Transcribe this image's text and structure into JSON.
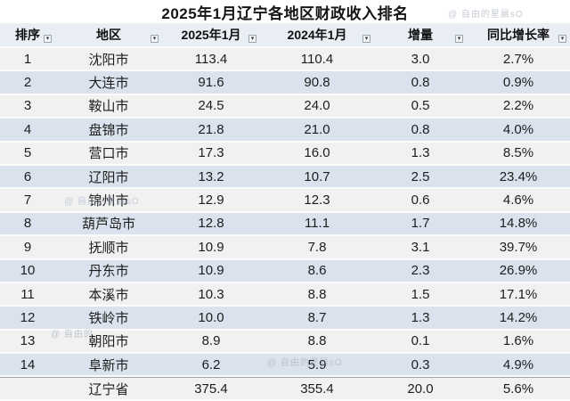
{
  "title": "2025年1月辽宁各地区财政收入排名",
  "watermarks": {
    "full": "@ 自由的星晨sO",
    "partial": "@ 自由的"
  },
  "table": {
    "columns": [
      "排序",
      "地区",
      "2025年1月",
      "2024年1月",
      "增量",
      "同比增长率"
    ],
    "filter_icon": "▾",
    "rows": [
      [
        "1",
        "沈阳市",
        "113.4",
        "110.4",
        "3.0",
        "2.7%"
      ],
      [
        "2",
        "大连市",
        "91.6",
        "90.8",
        "0.8",
        "0.9%"
      ],
      [
        "3",
        "鞍山市",
        "24.5",
        "24.0",
        "0.5",
        "2.2%"
      ],
      [
        "4",
        "盘锦市",
        "21.8",
        "21.0",
        "0.8",
        "4.0%"
      ],
      [
        "5",
        "营口市",
        "17.3",
        "16.0",
        "1.3",
        "8.5%"
      ],
      [
        "6",
        "辽阳市",
        "13.2",
        "10.7",
        "2.5",
        "23.4%"
      ],
      [
        "7",
        "锦州市",
        "12.9",
        "12.3",
        "0.6",
        "4.6%"
      ],
      [
        "8",
        "葫芦岛市",
        "12.8",
        "11.1",
        "1.7",
        "14.8%"
      ],
      [
        "9",
        "抚顺市",
        "10.9",
        "7.8",
        "3.1",
        "39.7%"
      ],
      [
        "10",
        "丹东市",
        "10.9",
        "8.6",
        "2.3",
        "26.9%"
      ],
      [
        "11",
        "本溪市",
        "10.3",
        "8.8",
        "1.5",
        "17.1%"
      ],
      [
        "12",
        "铁岭市",
        "10.0",
        "8.7",
        "1.3",
        "14.2%"
      ],
      [
        "13",
        "朝阳市",
        "8.9",
        "8.8",
        "0.1",
        "1.6%"
      ],
      [
        "14",
        "阜新市",
        "6.2",
        "5.9",
        "0.3",
        "4.9%"
      ]
    ],
    "total_row": [
      "",
      "辽宁省",
      "375.4",
      "355.4",
      "20.0",
      "5.6%"
    ]
  },
  "colors": {
    "row_gray": "#f1f1f2",
    "row_blue": "#d9e2ed",
    "header_bg": "#e9eef5",
    "separator": "#fbfbfb",
    "text": "#1d1d1d",
    "watermark": "#c5cbd4"
  }
}
